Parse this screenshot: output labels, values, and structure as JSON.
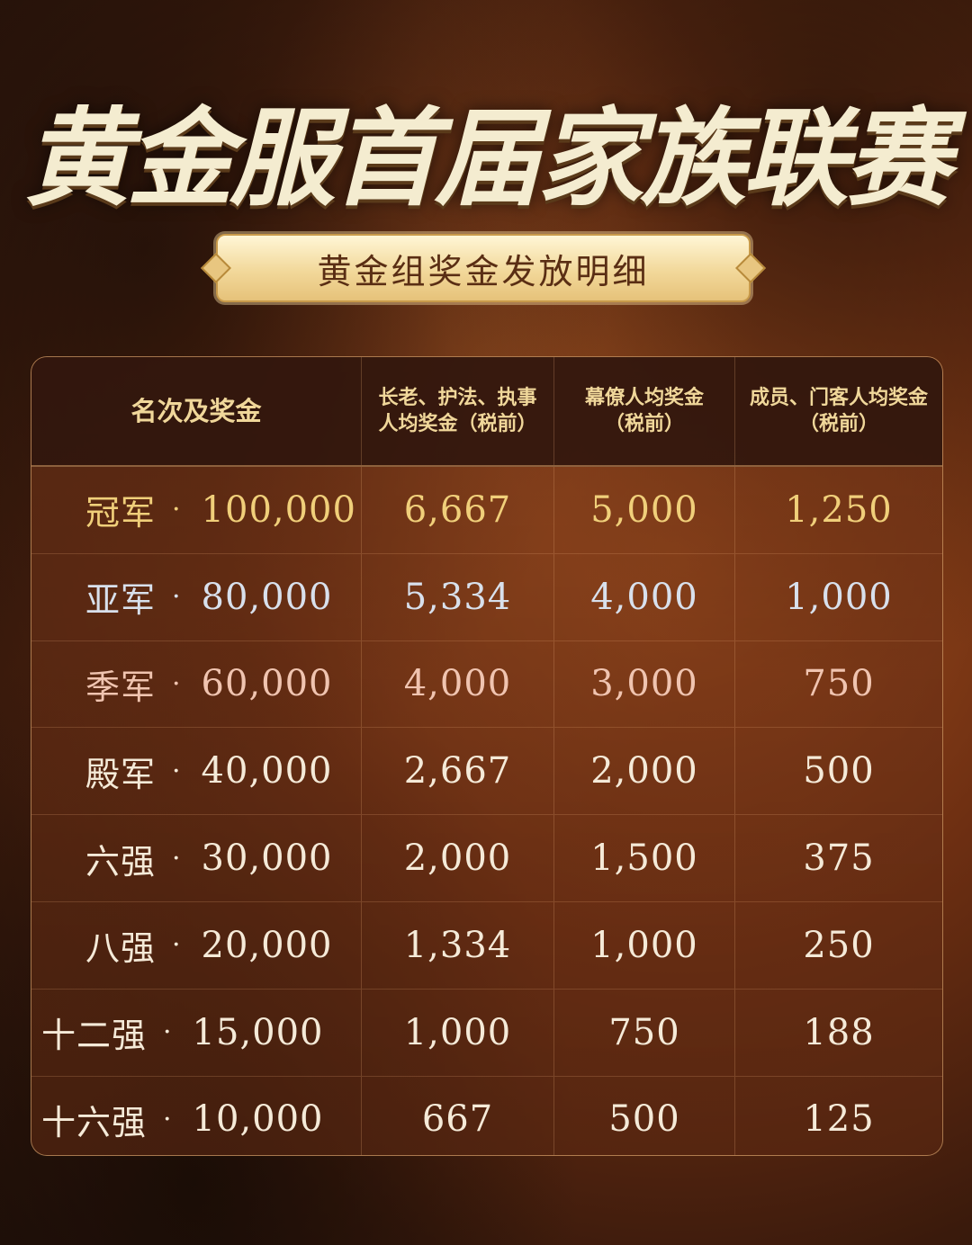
{
  "title": "黄金服首届家族联赛",
  "subtitle": "黄金组奖金发放明细",
  "table": {
    "headers": [
      [
        "名次及奖金"
      ],
      [
        "长老、护法、执事",
        "人均奖金（税前）"
      ],
      [
        "幕僚人均奖金",
        "（税前）"
      ],
      [
        "成员、门客人均奖金",
        "（税前）"
      ]
    ],
    "rows": [
      {
        "rank": "冠军",
        "prize": "100,000",
        "elder": "6,667",
        "advisor": "5,000",
        "member": "1,250"
      },
      {
        "rank": "亚军",
        "prize": "80,000",
        "elder": "5,334",
        "advisor": "4,000",
        "member": "1,000"
      },
      {
        "rank": "季军",
        "prize": "60,000",
        "elder": "4,000",
        "advisor": "3,000",
        "member": "750"
      },
      {
        "rank": "殿军",
        "prize": "40,000",
        "elder": "2,667",
        "advisor": "2,000",
        "member": "500"
      },
      {
        "rank": "六强",
        "prize": "30,000",
        "elder": "2,000",
        "advisor": "1,500",
        "member": "375"
      },
      {
        "rank": "八强",
        "prize": "20,000",
        "elder": "1,334",
        "advisor": "1,000",
        "member": "250"
      },
      {
        "rank": "十二强",
        "prize": "15,000",
        "elder": "1,000",
        "advisor": "750",
        "member": "188"
      },
      {
        "rank": "十六强",
        "prize": "10,000",
        "elder": "667",
        "advisor": "500",
        "member": "125"
      }
    ]
  },
  "colors": {
    "gold": "#f0cf7a",
    "silver": "#d8e0ec",
    "bronze": "#f0c4b0"
  }
}
